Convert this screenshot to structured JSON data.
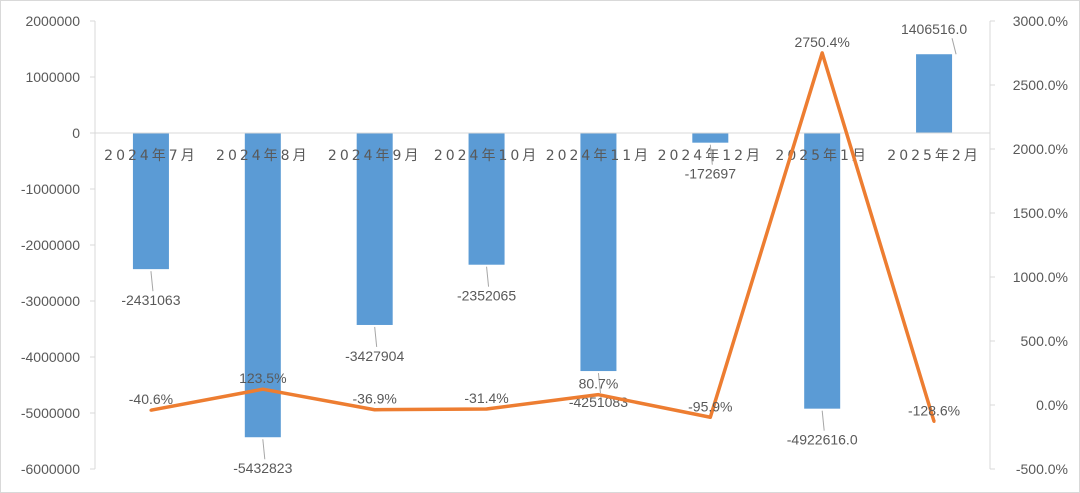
{
  "chart_data": {
    "type": "bar",
    "title": "",
    "categories": [
      "2024年7月",
      "2024年8月",
      "2024年9月",
      "2024年10月",
      "2024年11月",
      "2024年12月",
      "2025年1月",
      "2025年2月"
    ],
    "series": [
      {
        "type": "bar",
        "axis": "left",
        "color": "#5B9BD5",
        "values": [
          -2431063,
          -5432823,
          -3427904,
          -2352065,
          -4251083,
          -172697,
          -4922616.0,
          1406516.0
        ],
        "labels": [
          "-2431063",
          "-5432823",
          "-3427904",
          "-2352065",
          "-4251083",
          "-172697",
          "-4922616.0",
          "1406516.0"
        ]
      },
      {
        "type": "line",
        "axis": "right",
        "color": "#ED7D31",
        "values": [
          -40.6,
          123.5,
          -36.9,
          -31.4,
          80.7,
          -95.9,
          2750.4,
          -128.6
        ],
        "labels": [
          "-40.6%",
          "123.5%",
          "-36.9%",
          "-31.4%",
          "80.7%",
          "-95.9%",
          "2750.4%",
          "-128.6%"
        ]
      }
    ],
    "y_left": {
      "min": -6000000,
      "max": 2000000,
      "step": 1000000,
      "tick_labels": [
        "2000000",
        "1000000",
        "0",
        "-1000000",
        "-2000000",
        "-3000000",
        "-4000000",
        "-5000000",
        "-6000000"
      ]
    },
    "y_right": {
      "min": -500,
      "max": 3000,
      "step": 500,
      "tick_labels": [
        "3000.0%",
        "2500.0%",
        "2000.0%",
        "1500.0%",
        "1000.0%",
        "500.0%",
        "0.0%",
        "-500.0%"
      ]
    },
    "grid": false,
    "legend": "none"
  }
}
